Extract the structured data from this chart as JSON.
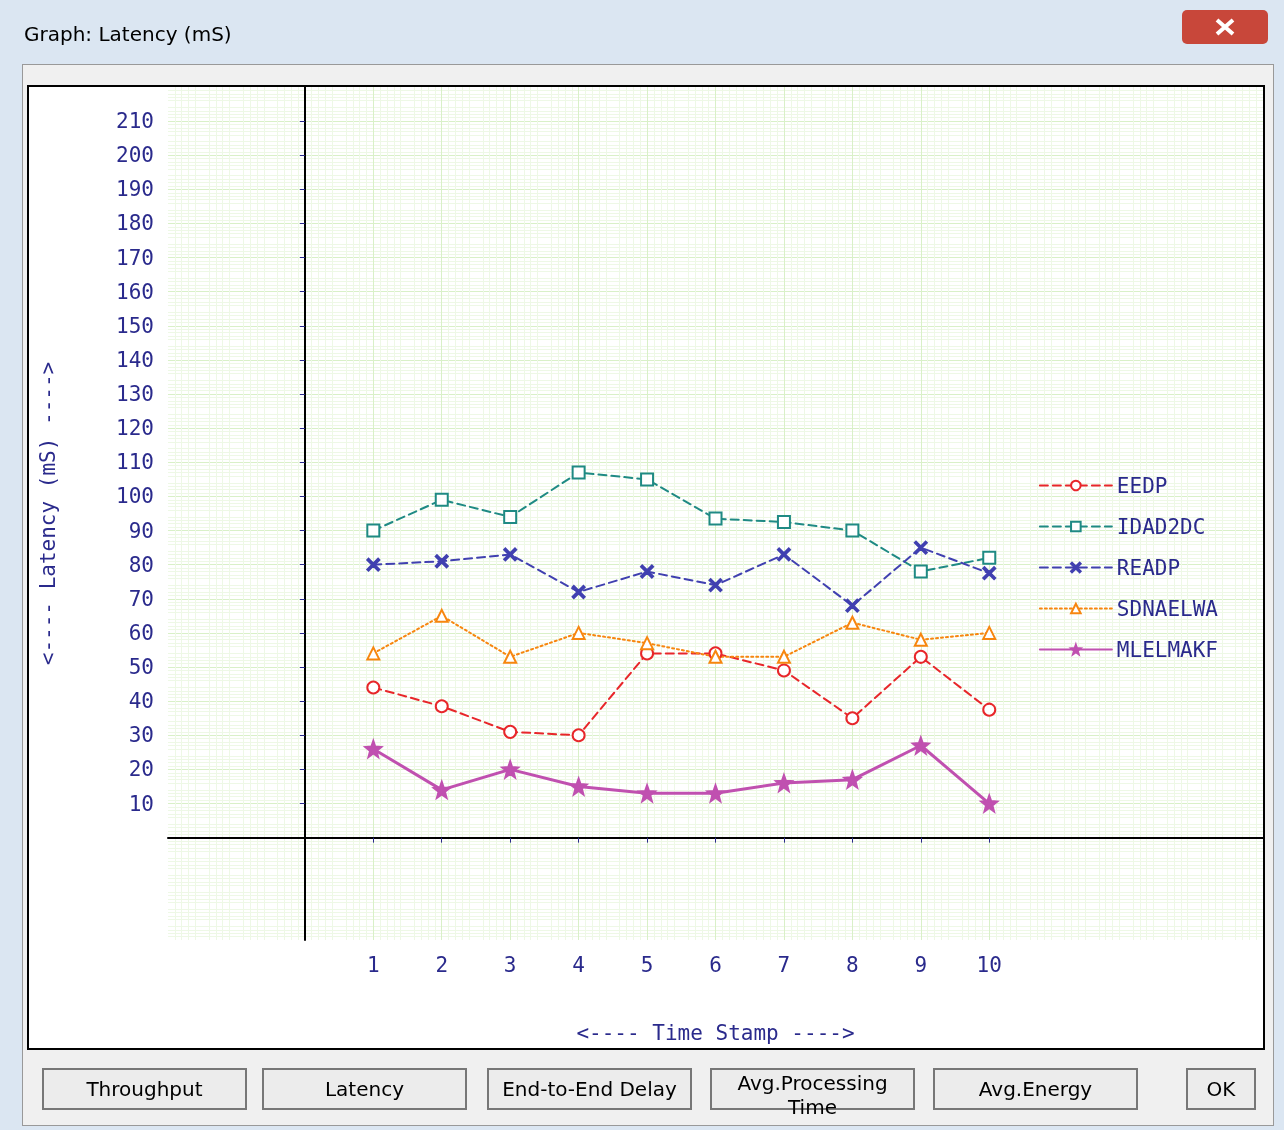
{
  "chart_data": {
    "type": "line",
    "title": "Graph: Latency (mS)",
    "xlabel": "<---- Time Stamp ---->",
    "ylabel": "<---- Latency (mS) ---->",
    "x": [
      1,
      2,
      3,
      4,
      5,
      6,
      7,
      8,
      9,
      10
    ],
    "series": [
      {
        "name": "EEDP",
        "color": "#e8262a",
        "marker": "circle",
        "line_style": "dashed",
        "values": [
          44,
          38.5,
          31,
          30,
          54,
          54,
          49,
          35,
          53,
          37.5
        ]
      },
      {
        "name": "IDAD2DC",
        "color": "#1f8a84",
        "marker": "square",
        "line_style": "dashed",
        "values": [
          90,
          99,
          94,
          107,
          105,
          93.5,
          92.5,
          90,
          78,
          82
        ]
      },
      {
        "name": "READP",
        "color": "#4040b0",
        "marker": "cross",
        "line_style": "dashed",
        "values": [
          80,
          81,
          83,
          72,
          78,
          74,
          83,
          68,
          85,
          77.5
        ]
      },
      {
        "name": "SDNAELWA",
        "color": "#f7860f",
        "marker": "triangle",
        "line_style": "dotted",
        "values": [
          54,
          65,
          53,
          60,
          57,
          53,
          53,
          63,
          58,
          60
        ]
      },
      {
        "name": "MLELMAKF",
        "color": "#c050b0",
        "marker": "star",
        "line_style": "solid",
        "values": [
          26,
          14,
          20,
          15,
          13,
          13,
          16,
          17,
          27,
          10
        ]
      }
    ],
    "xlim": [
      -2,
      14
    ],
    "xticks": [
      1,
      2,
      3,
      4,
      5,
      6,
      7,
      8,
      9,
      10
    ],
    "ylim": [
      -30,
      220
    ],
    "yticks": [
      10,
      20,
      30,
      40,
      50,
      60,
      70,
      80,
      90,
      100,
      110,
      120,
      130,
      140,
      150,
      160,
      170,
      180,
      190,
      200,
      210
    ],
    "grid": true,
    "legend": "right",
    "annotations": [
      "Throughput",
      "Latency",
      "End-to-End Delay",
      "Avg.Processing Time",
      "Avg.Energy",
      "OK"
    ]
  }
}
